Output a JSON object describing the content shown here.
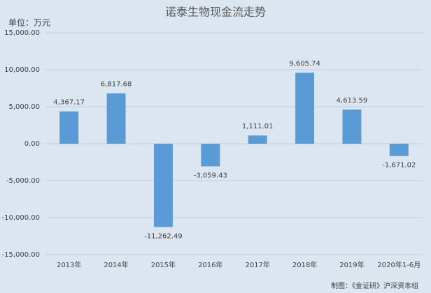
{
  "chart_data": {
    "type": "bar",
    "title": "诺泰生物现金流走势",
    "unit_label": "单位：万元",
    "source": "制图：《金证研》沪深资本组",
    "categories": [
      "2013年",
      "2014年",
      "2015年",
      "2016年",
      "2017年",
      "2018年",
      "2019年",
      "2020年1-6月"
    ],
    "values": [
      4367.17,
      6817.68,
      -11262.49,
      -3059.43,
      1111.01,
      9605.74,
      4613.59,
      -1671.02
    ],
    "value_labels": [
      "4,367.17",
      "6,817.68",
      "-11,262.49",
      "-3,059.43",
      "1,111.01",
      "9,605.74",
      "4,613.59",
      "-1,671.02"
    ],
    "color": "#5b9bd5",
    "ylim": [
      -15000,
      15000
    ],
    "yticks": [
      {
        "value": -15000,
        "label": "-15,000.00"
      },
      {
        "value": -10000,
        "label": "-10,000.00"
      },
      {
        "value": -5000,
        "label": "-5,000.00"
      },
      {
        "value": 0,
        "label": "0.00"
      },
      {
        "value": 5000,
        "label": "5,000.00"
      },
      {
        "value": 10000,
        "label": "10,000.00"
      },
      {
        "value": 15000,
        "label": "15,000.00"
      }
    ],
    "grid": true
  }
}
